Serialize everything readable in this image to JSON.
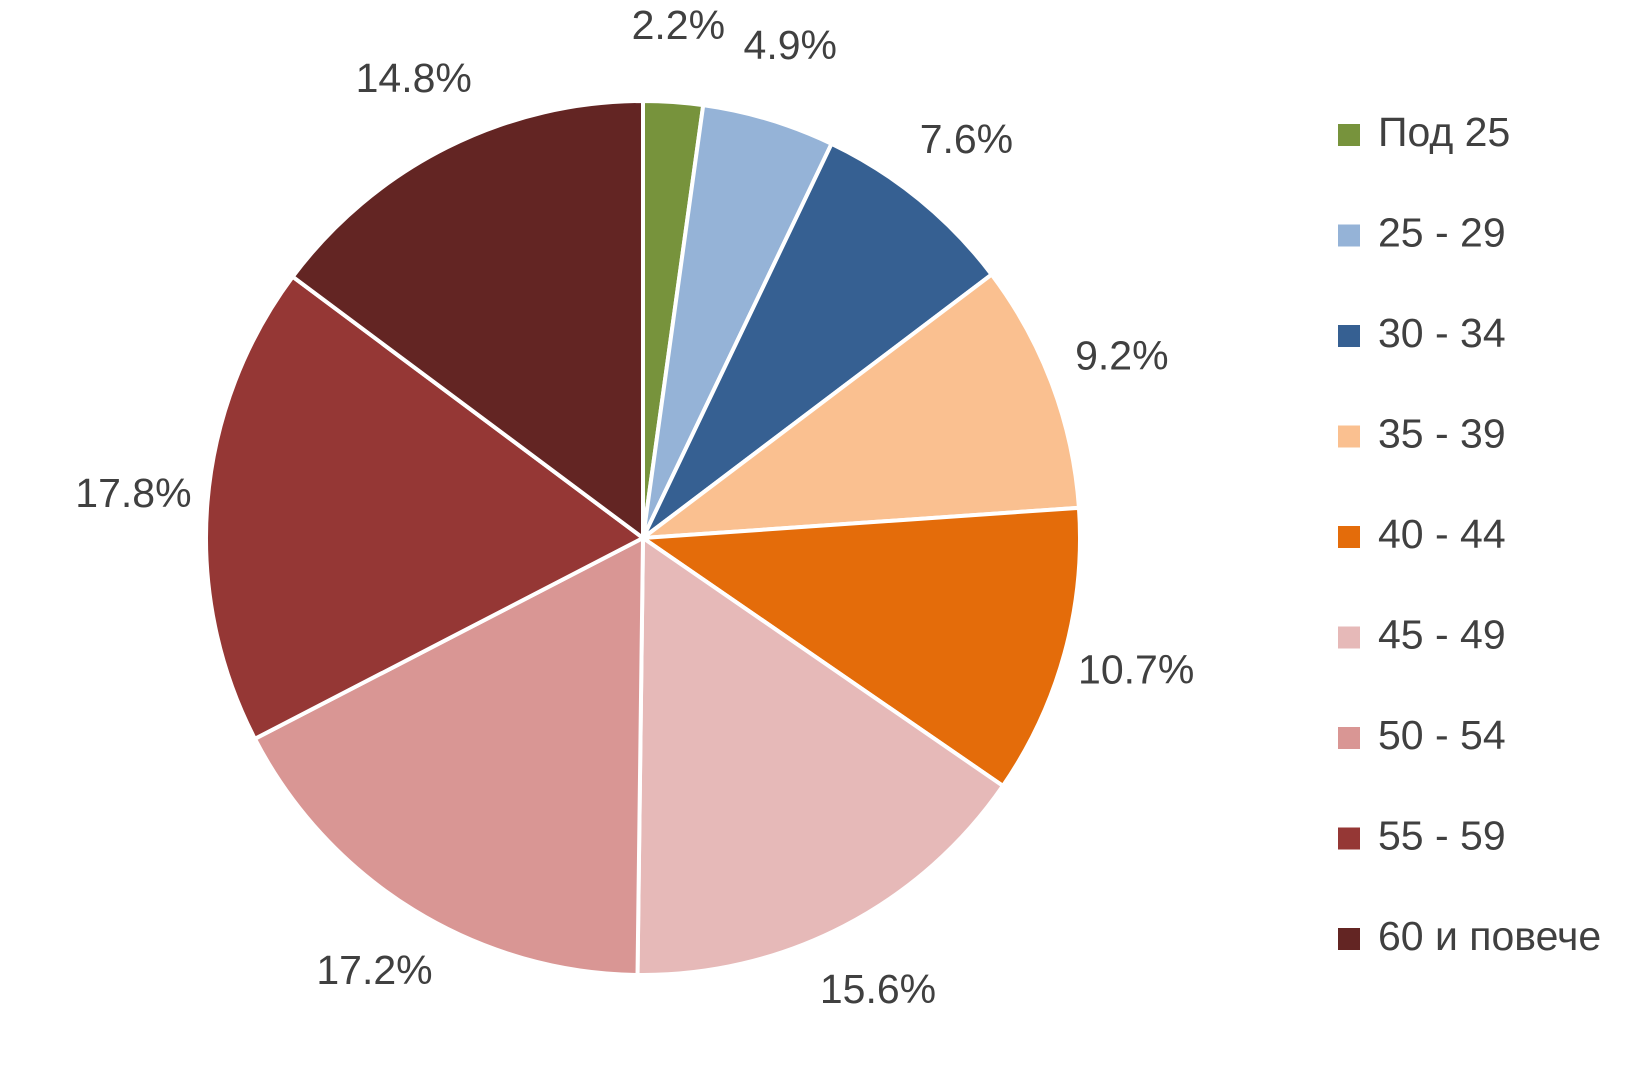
{
  "chart_data": {
    "type": "pie",
    "categories": [
      "Под 25",
      "25 - 29",
      "30 - 34",
      "35 - 39",
      "40 - 44",
      "45 - 49",
      "50 - 54",
      "55 - 59",
      "60 и повече"
    ],
    "values": [
      2.2,
      4.9,
      7.6,
      9.2,
      10.7,
      15.6,
      17.2,
      17.8,
      14.8
    ],
    "value_labels": [
      "2.2%",
      "4.9%",
      "7.6%",
      "9.2%",
      "10.7%",
      "15.6%",
      "17.2%",
      "17.8%",
      "14.8%"
    ],
    "colors": [
      "#77933c",
      "#95b3d7",
      "#366092",
      "#fac090",
      "#e46c0a",
      "#e6b9b8",
      "#d99694",
      "#953735",
      "#632523"
    ],
    "legend": "right"
  }
}
